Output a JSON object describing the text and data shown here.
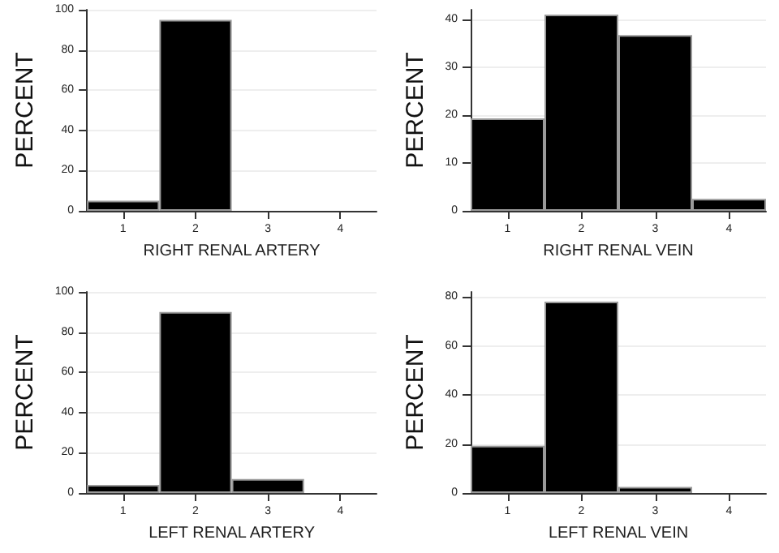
{
  "chart_data": [
    {
      "type": "bar",
      "xlabel": "RIGHT RENAL ARTERY",
      "ylabel": "PERCENT",
      "categories": [
        "1",
        "2",
        "3",
        "4"
      ],
      "values": [
        5,
        95,
        0,
        0
      ],
      "color": "#000000",
      "ylim": [
        0,
        100
      ],
      "yticks": [
        0,
        20,
        40,
        60,
        80,
        100
      ],
      "grid": "y"
    },
    {
      "type": "bar",
      "xlabel": "RIGHT RENAL VEIN",
      "ylabel": "PERCENT",
      "categories": [
        "1",
        "2",
        "3",
        "4"
      ],
      "values": [
        19.3,
        41,
        36.7,
        2.5
      ],
      "color": "#000000",
      "ylim": [
        0,
        42
      ],
      "yticks": [
        0,
        10,
        20,
        30,
        40
      ],
      "grid": "y"
    },
    {
      "type": "bar",
      "xlabel": "LEFT RENAL ARTERY",
      "ylabel": "PERCENT",
      "categories": [
        "1",
        "2",
        "3",
        "4"
      ],
      "values": [
        4,
        90,
        7,
        0
      ],
      "color": "#000000",
      "ylim": [
        0,
        100
      ],
      "yticks": [
        0,
        20,
        40,
        60,
        80,
        100
      ],
      "grid": "y"
    },
    {
      "type": "bar",
      "xlabel": "LEFT RENAL VEIN",
      "ylabel": "PERCENT",
      "categories": [
        "1",
        "2",
        "3",
        "4"
      ],
      "values": [
        19.3,
        78,
        2.5,
        0
      ],
      "color": "#000000",
      "ylim": [
        0,
        82
      ],
      "yticks": [
        0,
        20,
        40,
        60,
        80
      ],
      "grid": "y"
    }
  ]
}
